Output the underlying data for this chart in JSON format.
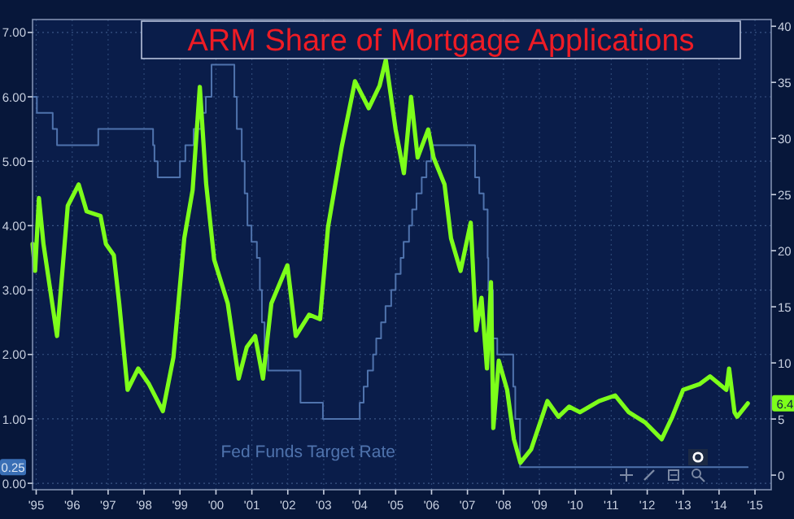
{
  "chart_data": {
    "type": "line",
    "title": "ARM Share of Mortgage Applications",
    "xlim": [
      "1995-05-25",
      "2015-12-13"
    ],
    "xticks": [
      {
        "value": "1995-07-01",
        "label": "'95"
      },
      {
        "value": "1996-07-01",
        "label": "'96"
      },
      {
        "value": "1997-07-01",
        "label": "'97"
      },
      {
        "value": "1998-07-01",
        "label": "'98"
      },
      {
        "value": "1999-07-01",
        "label": "'99"
      },
      {
        "value": "2000-07-01",
        "label": "'00"
      },
      {
        "value": "2001-07-01",
        "label": "'01"
      },
      {
        "value": "2002-07-01",
        "label": "'02"
      },
      {
        "value": "2003-07-01",
        "label": "'03"
      },
      {
        "value": "2004-07-01",
        "label": "'04"
      },
      {
        "value": "2005-07-01",
        "label": "'05"
      },
      {
        "value": "2006-07-01",
        "label": "'06"
      },
      {
        "value": "2007-07-01",
        "label": "'07"
      },
      {
        "value": "2008-07-01",
        "label": "'08"
      },
      {
        "value": "2009-07-01",
        "label": "'09"
      },
      {
        "value": "2010-07-01",
        "label": "'10"
      },
      {
        "value": "2011-07-01",
        "label": "'11"
      },
      {
        "value": "2012-07-01",
        "label": "'12"
      },
      {
        "value": "2013-07-01",
        "label": "'13"
      },
      {
        "value": "2014-07-01",
        "label": "'14"
      },
      {
        "value": "2015-07-01",
        "label": "'15"
      }
    ],
    "ylim": [
      -0.1,
      7.2
    ],
    "yticks": [
      {
        "value": 0,
        "label": "0.00"
      },
      {
        "value": 1,
        "label": "1.00"
      },
      {
        "value": 2,
        "label": "2.00"
      },
      {
        "value": 3,
        "label": "3.00"
      },
      {
        "value": 4,
        "label": "4.00"
      },
      {
        "value": 5,
        "label": "5.00"
      },
      {
        "value": 6,
        "label": "6.00"
      },
      {
        "value": 7,
        "label": "7.00"
      }
    ],
    "y2lim": [
      -1.3,
      40.6
    ],
    "y2ticks": [
      0,
      5,
      10,
      15,
      20,
      25,
      30,
      35,
      40
    ],
    "grid": true,
    "annotations": [
      "0.25",
      "6.4"
    ],
    "series": [
      {
        "name": "Fed Funds Target Rate",
        "type": "step",
        "axis": "y",
        "color": "#4f73ad",
        "x": [
          "1995-05-25",
          "1995-07-08",
          "1995-12-16",
          "1996-01-29",
          "1997-03-23",
          "1998-10-01",
          "1998-10-15",
          "1998-11-17",
          "1999-07-01",
          "1999-08-25",
          "1999-11-17",
          "2000-02-03",
          "2000-03-20",
          "2000-05-17",
          "2001-01-04",
          "2001-01-29",
          "2001-03-20",
          "2001-04-19",
          "2001-05-17",
          "2001-06-27",
          "2001-08-21",
          "2001-09-20",
          "2001-10-11",
          "2001-11-07",
          "2001-12-13",
          "2002-11-07",
          "2003-06-23",
          "2004-07-01",
          "2004-08-10",
          "2004-09-20",
          "2004-11-14",
          "2004-12-16",
          "2005-02-03",
          "2005-03-20",
          "2005-05-17",
          "2005-07-01",
          "2005-08-21",
          "2005-09-20",
          "2005-11-14",
          "2005-12-16",
          "2006-01-29",
          "2006-03-23",
          "2006-05-10",
          "2006-06-27",
          "2007-09-16",
          "2007-10-29",
          "2007-12-13",
          "2008-01-22",
          "2008-01-29",
          "2008-03-16",
          "2008-04-29",
          "2008-10-08",
          "2008-10-29",
          "2008-12-16",
          "2015-04-19"
        ],
        "values": [
          6.0,
          5.75,
          5.5,
          5.25,
          5.5,
          5.25,
          5.0,
          4.75,
          5.0,
          5.25,
          5.5,
          5.75,
          6.0,
          6.5,
          6.0,
          5.5,
          5.0,
          4.5,
          4.0,
          3.75,
          3.5,
          3.0,
          2.5,
          2.0,
          1.75,
          1.25,
          1.0,
          1.25,
          1.5,
          1.75,
          2.0,
          2.25,
          2.5,
          2.75,
          3.0,
          3.25,
          3.5,
          3.75,
          4.0,
          4.25,
          4.5,
          4.75,
          5.0,
          5.25,
          4.75,
          4.5,
          4.25,
          3.5,
          3.0,
          2.25,
          2.0,
          1.5,
          1.0,
          0.25,
          0.25
        ]
      },
      {
        "axis": "y2",
        "color": "#7dff1a",
        "x": [
          "1995-05-25",
          "1995-06-20",
          "1995-07-29",
          "1995-09-13",
          "1996-01-29",
          "1996-05-17",
          "1996-09-05",
          "1996-11-25",
          "1997-04-15",
          "1997-06-09",
          "1997-08-28",
          "1997-10-22",
          "1998-01-15",
          "1998-05-03",
          "1998-08-21",
          "1999-01-08",
          "1999-04-26",
          "1999-08-14",
          "1999-11-07",
          "2000-01-19",
          "2000-03-23",
          "2000-06-13",
          "2000-10-29",
          "2001-02-17",
          "2001-05-10",
          "2001-08-03",
          "2001-10-22",
          "2002-01-15",
          "2002-06-27",
          "2002-09-20",
          "2003-02-03",
          "2003-05-25",
          "2003-08-14",
          "2004-01-01",
          "2004-05-14",
          "2004-10-01",
          "2005-01-19",
          "2005-03-23",
          "2005-07-01",
          "2005-09-23",
          "2005-12-05",
          "2006-02-10",
          "2006-05-28",
          "2006-07-22",
          "2006-11-10",
          "2007-01-15",
          "2007-04-22",
          "2007-08-03",
          "2007-09-27",
          "2007-11-21",
          "2008-01-15",
          "2008-02-25",
          "2008-03-20",
          "2008-05-14",
          "2008-08-07",
          "2008-10-15",
          "2008-12-20",
          "2009-04-08",
          "2009-09-20",
          "2010-01-11",
          "2010-04-29",
          "2010-08-17",
          "2011-02-28",
          "2011-08-10",
          "2011-12-27",
          "2012-06-09",
          "2012-11-25",
          "2013-03-13",
          "2013-07-01",
          "2013-12-13",
          "2014-04-01",
          "2014-09-13",
          "2014-10-11",
          "2014-12-05",
          "2015-01-01",
          "2015-04-19"
        ],
        "values": [
          20.6,
          18.2,
          24.7,
          20.6,
          12.4,
          24.0,
          25.9,
          23.5,
          23.1,
          20.6,
          19.6,
          15.3,
          7.6,
          9.5,
          8.1,
          5.7,
          10.5,
          21.1,
          25.4,
          34.6,
          26.0,
          19.2,
          15.3,
          8.6,
          11.4,
          12.4,
          8.6,
          15.3,
          18.7,
          12.4,
          14.3,
          13.9,
          22.1,
          29.3,
          35.1,
          32.7,
          34.7,
          37.0,
          30.8,
          26.9,
          33.7,
          28.3,
          30.8,
          28.3,
          25.9,
          21.1,
          18.2,
          22.5,
          12.9,
          15.8,
          9.5,
          17.2,
          4.2,
          10.2,
          7.6,
          3.2,
          1.1,
          2.3,
          6.6,
          5.2,
          6.1,
          5.6,
          6.6,
          7.1,
          5.6,
          4.7,
          3.2,
          5.2,
          7.6,
          8.1,
          8.8,
          7.6,
          9.5,
          5.6,
          5.2,
          6.4
        ]
      }
    ]
  }
}
